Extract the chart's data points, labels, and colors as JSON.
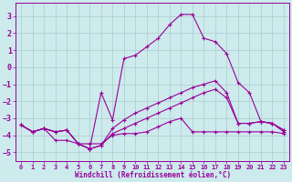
{
  "xlabel": "Windchill (Refroidissement éolien,°C)",
  "xlim": [
    -0.5,
    23.5
  ],
  "ylim": [
    -5.5,
    3.8
  ],
  "xticks": [
    0,
    1,
    2,
    3,
    4,
    5,
    6,
    7,
    8,
    9,
    10,
    11,
    12,
    13,
    14,
    15,
    16,
    17,
    18,
    19,
    20,
    21,
    22,
    23
  ],
  "yticks": [
    -5,
    -4,
    -3,
    -2,
    -1,
    0,
    1,
    2,
    3
  ],
  "bg_color": "#cdeaed",
  "grid_color": "#aacccc",
  "line_color": "#990099",
  "line1_y": [
    -3.4,
    -3.8,
    -3.6,
    -3.8,
    -3.7,
    -4.5,
    -4.8,
    -1.5,
    -3.1,
    0.5,
    0.7,
    1.2,
    1.7,
    2.5,
    3.1,
    3.1,
    1.7,
    1.5,
    0.8,
    -0.9,
    -1.5,
    -3.2,
    -3.3,
    -3.8
  ],
  "line2_y": [
    -3.4,
    -3.8,
    -3.6,
    -4.3,
    -4.3,
    -4.5,
    -4.5,
    -4.5,
    -4.0,
    -3.9,
    -3.9,
    -3.8,
    -3.5,
    -3.2,
    -3.0,
    -3.8,
    -3.8,
    -3.8,
    -3.8,
    -3.8,
    -3.8,
    -3.8,
    -3.8,
    -3.9
  ],
  "line3_y": [
    -3.4,
    -3.8,
    -3.6,
    -3.8,
    -3.7,
    -4.5,
    -4.8,
    -4.6,
    -3.6,
    -3.1,
    -2.7,
    -2.4,
    -2.1,
    -1.8,
    -1.5,
    -1.2,
    -1.0,
    -0.8,
    -1.5,
    -3.3,
    -3.3,
    -3.2,
    -3.3,
    -3.7
  ],
  "line4_y": [
    -3.4,
    -3.8,
    -3.6,
    -3.8,
    -3.7,
    -4.5,
    -4.8,
    -4.6,
    -3.9,
    -3.6,
    -3.3,
    -3.0,
    -2.7,
    -2.4,
    -2.1,
    -1.8,
    -1.5,
    -1.3,
    -1.8,
    -3.3,
    -3.3,
    -3.2,
    -3.3,
    -3.7
  ]
}
